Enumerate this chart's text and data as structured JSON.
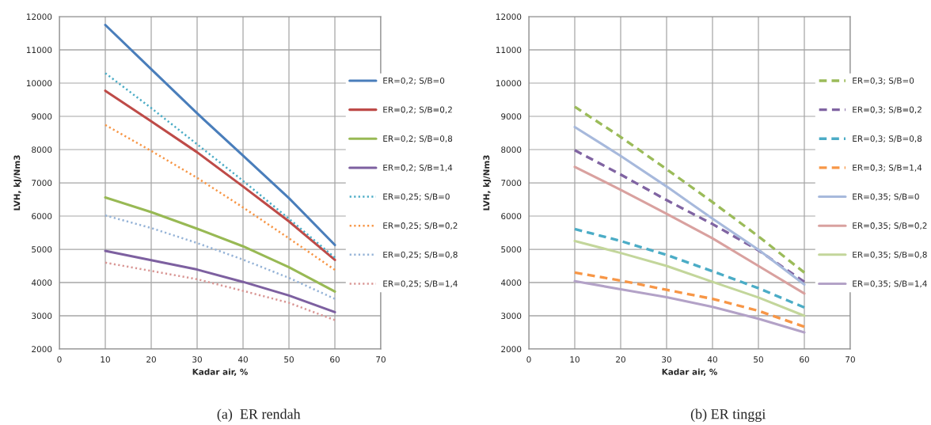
{
  "chart_data": [
    {
      "type": "line",
      "xlabel": "Kadar air, %",
      "ylabel": "LVH, kJ/Nm3",
      "annotations": [
        "(a)  ER rendah"
      ],
      "x": [
        10,
        20,
        30,
        40,
        50,
        60
      ],
      "xlim": [
        0,
        70
      ],
      "xticks": [
        0,
        10,
        20,
        30,
        40,
        50,
        60,
        70
      ],
      "ylim": [
        2000,
        12000
      ],
      "yticks": [
        2000,
        3000,
        4000,
        5000,
        6000,
        7000,
        8000,
        9000,
        10000,
        11000,
        12000
      ],
      "grid": true,
      "legend": "right",
      "series": [
        {
          "name": "ER=0,2; S/B=0",
          "color": "#4a7ebb",
          "line_style": "solid",
          "values": [
            11750,
            10420,
            9090,
            7820,
            6540,
            5130
          ]
        },
        {
          "name": "ER=0,2; S/B=0,2",
          "color": "#be4b48",
          "line_style": "solid",
          "values": [
            9770,
            8850,
            7920,
            6890,
            5840,
            4680
          ]
        },
        {
          "name": "ER=0,2; S/B=0,8",
          "color": "#98b954",
          "line_style": "solid",
          "values": [
            6560,
            6120,
            5620,
            5090,
            4460,
            3730
          ]
        },
        {
          "name": "ER=0,2; S/B=1,4",
          "color": "#7d60a0",
          "line_style": "solid",
          "values": [
            4950,
            4670,
            4390,
            4020,
            3610,
            3110
          ]
        },
        {
          "name": "ER=0,25; S/B=0",
          "color": "#4bacc6",
          "line_style": "dotted",
          "values": [
            10300,
            9250,
            8160,
            7060,
            5920,
            4750
          ]
        },
        {
          "name": "ER=0,25; S/B=0,2",
          "color": "#f79646",
          "line_style": "dotted",
          "values": [
            8740,
            7960,
            7150,
            6260,
            5330,
            4380
          ]
        },
        {
          "name": "ER=0,25; S/B=0,8",
          "color": "#95b3d7",
          "line_style": "dotted",
          "values": [
            6020,
            5640,
            5190,
            4690,
            4140,
            3510
          ]
        },
        {
          "name": "ER=0,25; S/B=1,4",
          "color": "#d99694",
          "line_style": "dotted",
          "values": [
            4600,
            4350,
            4100,
            3750,
            3390,
            2870
          ]
        }
      ]
    },
    {
      "type": "line",
      "xlabel": "Kadar air, %",
      "ylabel": "LVH, kJ/Nm3",
      "annotations": [
        "(b) ER tinggi"
      ],
      "x": [
        10,
        20,
        30,
        40,
        50,
        60
      ],
      "xlim": [
        0,
        70
      ],
      "xticks": [
        0,
        10,
        20,
        30,
        40,
        50,
        60,
        70
      ],
      "ylim": [
        2000,
        12000
      ],
      "yticks": [
        2000,
        3000,
        4000,
        5000,
        6000,
        7000,
        8000,
        9000,
        10000,
        11000,
        12000
      ],
      "grid": true,
      "legend": "right",
      "series": [
        {
          "name": "ER=0,3; S/B=0",
          "color": "#9bbb59",
          "line_style": "dashed",
          "values": [
            9290,
            8380,
            7410,
            6420,
            5390,
            4300
          ]
        },
        {
          "name": "ER=0,3; S/B=0,2",
          "color": "#8064a2",
          "line_style": "dashed",
          "values": [
            7980,
            7250,
            6480,
            5760,
            4970,
            4020
          ]
        },
        {
          "name": "ER=0,3; S/B=0,8",
          "color": "#4bacc6",
          "line_style": "dashed",
          "values": [
            5610,
            5250,
            4830,
            4340,
            3830,
            3250
          ]
        },
        {
          "name": "ER=0,3; S/B=1,4",
          "color": "#f79646",
          "line_style": "dashed",
          "values": [
            4300,
            4060,
            3780,
            3510,
            3150,
            2670
          ]
        },
        {
          "name": "ER=0,35; S/B=0",
          "color": "#a7b9dc",
          "line_style": "solid",
          "values": [
            8680,
            7810,
            6890,
            5920,
            4990,
            3940
          ]
        },
        {
          "name": "ER=0,35; S/B=0,2",
          "color": "#d9a19f",
          "line_style": "solid",
          "values": [
            7480,
            6790,
            6070,
            5330,
            4500,
            3670
          ]
        },
        {
          "name": "ER=0,35; S/B=0,8",
          "color": "#c3d69b",
          "line_style": "solid",
          "values": [
            5250,
            4890,
            4500,
            4020,
            3550,
            3000
          ]
        },
        {
          "name": "ER=0,35; S/B=1,4",
          "color": "#b3a2c7",
          "line_style": "solid",
          "values": [
            4040,
            3800,
            3560,
            3270,
            2910,
            2500
          ]
        }
      ]
    }
  ]
}
